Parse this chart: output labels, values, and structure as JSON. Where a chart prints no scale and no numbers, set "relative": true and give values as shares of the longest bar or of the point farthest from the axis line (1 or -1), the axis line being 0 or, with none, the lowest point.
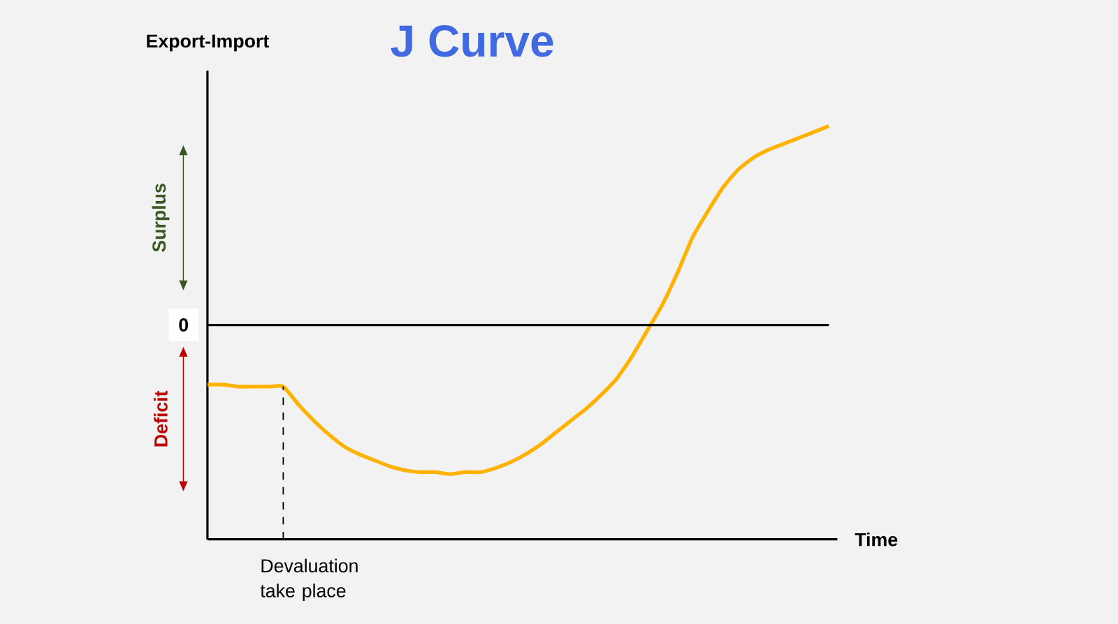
{
  "chart_data": {
    "type": "line",
    "title": "J Curve",
    "xlabel": "Time",
    "ylabel": "Export-Import",
    "relative": true,
    "marker": "none",
    "line_style": "solid",
    "categories": [
      null,
      null,
      null,
      null,
      null,
      null,
      null,
      null,
      null,
      null,
      null,
      null,
      null,
      null,
      null,
      null,
      null,
      null,
      null,
      null,
      null,
      null,
      null,
      null,
      null,
      null,
      null,
      null,
      null,
      null,
      null,
      null,
      null,
      null,
      null,
      null,
      null,
      null,
      null,
      null,
      null,
      null
    ],
    "series": [
      {
        "color": "#ffb300",
        "values": [
          -0.3,
          -0.3,
          -0.31,
          -0.31,
          -0.31,
          -0.31,
          -0.4,
          -0.48,
          -0.55,
          -0.61,
          -0.65,
          -0.68,
          -0.71,
          -0.73,
          -0.74,
          -0.74,
          -0.75,
          -0.74,
          -0.74,
          -0.72,
          -0.69,
          -0.65,
          -0.6,
          -0.54,
          -0.48,
          -0.42,
          -0.35,
          -0.27,
          -0.16,
          -0.03,
          0.1,
          0.26,
          0.44,
          0.57,
          0.69,
          0.78,
          0.84,
          0.88,
          0.91,
          0.94,
          0.97,
          1.0
        ]
      }
    ],
    "ref_lines": [
      {
        "axis": "y",
        "value": 0,
        "label": "0",
        "color": "#000000"
      }
    ],
    "annotations": [
      "Surplus",
      "Deficit",
      "Devaluation take place"
    ]
  }
}
